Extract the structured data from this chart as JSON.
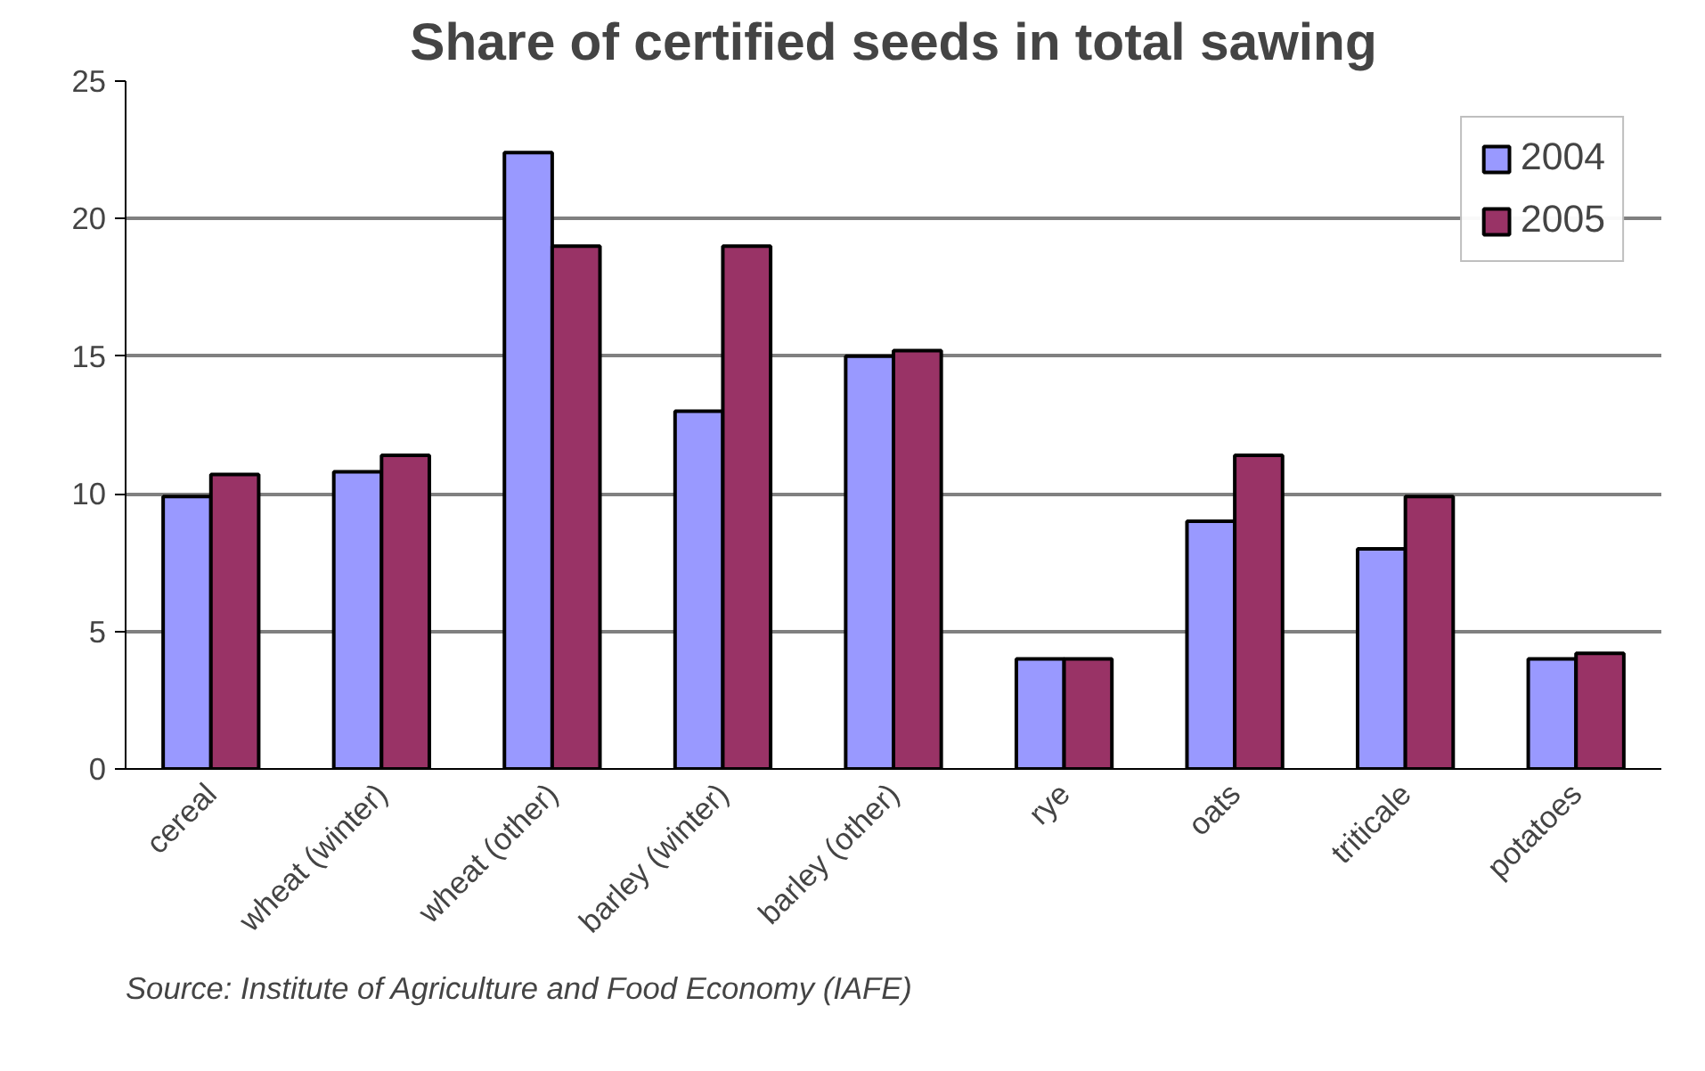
{
  "chart_data": {
    "type": "bar",
    "title": "Share of certified seeds in total sawing",
    "categories": [
      "cereal",
      "wheat (winter)",
      "wheat (other)",
      "barley (winter)",
      "barley (other)",
      "rye",
      "oats",
      "triticale",
      "potatoes"
    ],
    "series": [
      {
        "name": "2004",
        "color": "#9999ff",
        "values": [
          9.9,
          10.8,
          22.4,
          13.0,
          15.0,
          4.0,
          9.0,
          8.0,
          4.0
        ]
      },
      {
        "name": "2005",
        "color": "#993366",
        "values": [
          10.7,
          11.4,
          19.0,
          19.0,
          15.2,
          4.0,
          11.4,
          9.9,
          4.2
        ]
      }
    ],
    "ylim": [
      0,
      25
    ],
    "yticks": [
      0,
      5,
      10,
      15,
      20,
      25
    ],
    "grid": "y",
    "legend": "top right",
    "annotations": [
      "Source: Institute of Agriculture and Food Economy (IAFE)"
    ]
  }
}
